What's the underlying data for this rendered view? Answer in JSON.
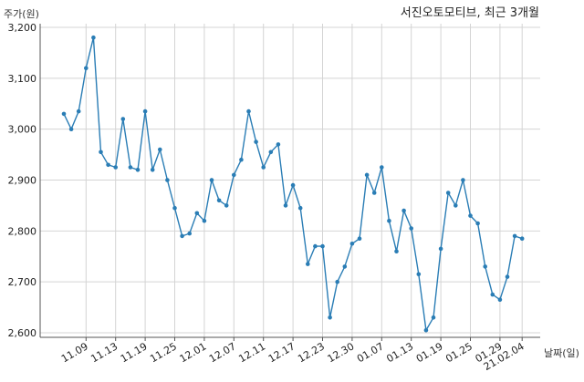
{
  "chart_data": {
    "type": "line",
    "title": "서진오토모티브, 최근 3개월",
    "ylabel": "주가(원)",
    "xlabel": "날짜(일)",
    "ylim": [
      2590,
      3210
    ],
    "yticks": [
      2600,
      2700,
      2800,
      2900,
      3000,
      3100,
      3200
    ],
    "ytick_labels": [
      "2,600",
      "2,700",
      "2,800",
      "2,900",
      "3,000",
      "3,100",
      "3,200"
    ],
    "xtick_labels": [
      "11.09",
      "11.13",
      "11.19",
      "11.25",
      "12.01",
      "12.07",
      "12.11",
      "12.17",
      "12.23",
      "12.30",
      "01.07",
      "01.13",
      "01.19",
      "01.25",
      "01.29",
      "21.02.04"
    ],
    "xtick_index": [
      3,
      7,
      11,
      15,
      19,
      23,
      27,
      31,
      35,
      39,
      43,
      47,
      51,
      55,
      59,
      62
    ],
    "grid": true,
    "color": "#2a7db5",
    "series": [
      {
        "values": [
          3030,
          3000,
          3035,
          3120,
          3180,
          2955,
          2930,
          2925,
          3020,
          2925,
          2920,
          3035,
          2920,
          2960,
          2900,
          2845,
          2790,
          2795,
          2835,
          2820,
          2900,
          2860,
          2850,
          2910,
          2940,
          3035,
          2975,
          2925,
          2955,
          2970,
          2850,
          2890,
          2845,
          2735,
          2770,
          2770,
          2630,
          2700,
          2730,
          2775,
          2785,
          2910,
          2875,
          2925,
          2820,
          2760,
          2840,
          2805,
          2715,
          2605,
          2630,
          2765,
          2875,
          2850,
          2900,
          2830,
          2815,
          2730,
          2675,
          2665,
          2710,
          2790,
          2785
        ]
      }
    ]
  }
}
